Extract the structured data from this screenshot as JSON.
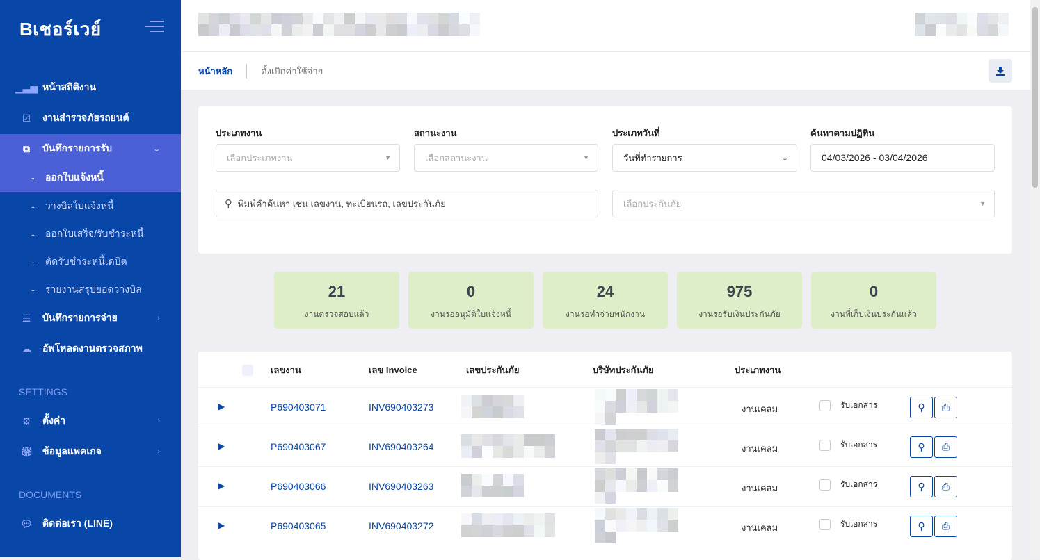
{
  "brand": {
    "name": "Bเชอร์เวย์",
    "accent": "#0846a8",
    "active": "#4b5fd6"
  },
  "sidebar": {
    "items": [
      {
        "label": "หน้าสถิติงาน",
        "icon": "bar-chart-icon"
      },
      {
        "label": "งานสำรวจภัยรถยนต์",
        "icon": "calendar-check-icon"
      },
      {
        "label": "บันทึกรายการรับ",
        "icon": "copy-icon",
        "expanded": true
      },
      {
        "label": "บันทึกรายการจ่าย",
        "icon": "list-icon"
      },
      {
        "label": "อัพโหลดงานตรวจสภาพ",
        "icon": "cloud-upload-icon"
      }
    ],
    "subitems": [
      "ออกใบแจ้งหนี้",
      "วางบิลใบแจ้งหนี้",
      "ออกใบเสร็จ/รับชำระหนี้",
      "ตัดรับชำระหนี้เดบิต",
      "รายงานสรุปยอดวางบิล"
    ],
    "settings_title": "SETTINGS",
    "settings": [
      {
        "label": "ตั้งค่า",
        "icon": "gear-icon"
      },
      {
        "label": "ข้อมูลแพคเกจ",
        "icon": "gift-icon"
      }
    ],
    "documents_title": "DOCUMENTS",
    "documents": [
      {
        "label": "ติดต่อเรา (LINE)",
        "icon": "chat-icon"
      }
    ]
  },
  "breadcrumb": {
    "home": "หน้าหลัก",
    "current": "ตั้งเบิกค่าใช้จ่าย"
  },
  "filters": {
    "job_type": {
      "label": "ประเภทงาน",
      "placeholder": "เลือกประเภทงาน"
    },
    "job_status": {
      "label": "สถานะงาน",
      "placeholder": "เลือกสถานะงาน"
    },
    "date_type": {
      "label": "ประเภทวันที่",
      "value": "วันที่ทำรายการ"
    },
    "date_range": {
      "label": "ค้นหาตามปฏิทิน",
      "value": "04/03/2026 - 03/04/2026"
    },
    "search": {
      "placeholder": "พิมพ์คำค้นหา เช่น เลขงาน, ทะเบียนรถ, เลขประกันภัย"
    },
    "insurer": {
      "placeholder": "เลือกประกันภัย"
    }
  },
  "stats": [
    {
      "value": "21",
      "label": "งานตรวจสอบแล้ว"
    },
    {
      "value": "0",
      "label": "งานรออนุมัติใบแจ้งหนี้"
    },
    {
      "value": "24",
      "label": "งานรอทำจ่ายพนักงาน"
    },
    {
      "value": "975",
      "label": "งานรอรับเงินประกันภัย"
    },
    {
      "value": "0",
      "label": "งานที่เก็บเงินประกันแล้ว"
    }
  ],
  "table": {
    "headers": [
      "เลขงาน",
      "เลข Invoice",
      "เลขประกันภัย",
      "บริษัทประกันภัย",
      "ประเภทงาน"
    ],
    "doc_label": "รับเอกสาร",
    "rows": [
      {
        "job": "P690403071",
        "invoice": "INV690403273",
        "type": "งานเคลม"
      },
      {
        "job": "P690403067",
        "invoice": "INV690403264",
        "type": "งานเคลม"
      },
      {
        "job": "P690403066",
        "invoice": "INV690403263",
        "type": "งานเคลม"
      },
      {
        "job": "P690403065",
        "invoice": "INV690403272",
        "type": "งานเคลม"
      }
    ]
  }
}
